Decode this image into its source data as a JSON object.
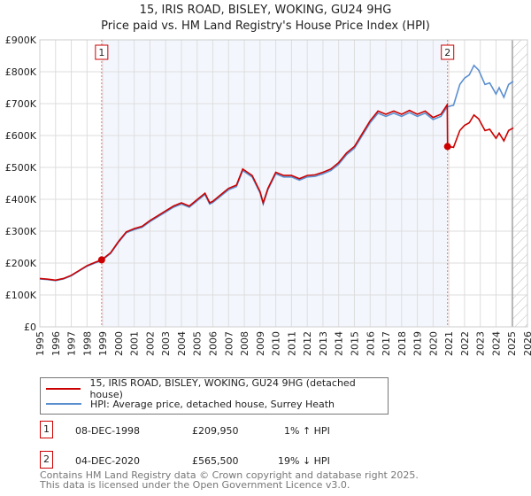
{
  "title": "15, IRIS ROAD, BISLEY, WOKING, GU24 9HG",
  "subtitle": "Price paid vs. HM Land Registry's House Price Index (HPI)",
  "legend": {
    "property": "15, IRIS ROAD, BISLEY, WOKING, GU24 9HG (detached house)",
    "hpi": "HPI: Average price, detached house, Surrey Heath"
  },
  "sales": [
    {
      "num": "1",
      "date": "08-DEC-1998",
      "price": "£209,950",
      "delta": "1% ↑ HPI"
    },
    {
      "num": "2",
      "date": "04-DEC-2020",
      "price": "£565,500",
      "delta": "19% ↓ HPI"
    }
  ],
  "footer": [
    "Contains HM Land Registry data © Crown copyright and database right 2025.",
    "This data is licensed under the Open Government Licence v3.0."
  ],
  "chart_data": {
    "type": "line",
    "xlim": [
      1995,
      2026
    ],
    "ylim": [
      0,
      900000
    ],
    "xticks": [
      "1995",
      "1996",
      "1997",
      "1998",
      "1999",
      "2000",
      "2001",
      "2002",
      "2003",
      "2004",
      "2005",
      "2006",
      "2007",
      "2008",
      "2009",
      "2010",
      "2011",
      "2012",
      "2013",
      "2014",
      "2015",
      "2016",
      "2017",
      "2018",
      "2019",
      "2020",
      "2021",
      "2022",
      "2023",
      "2024",
      "2025",
      "2026"
    ],
    "yticks": [
      {
        "v": 0,
        "l": "£0"
      },
      {
        "v": 100000,
        "l": "£100K"
      },
      {
        "v": 200000,
        "l": "£200K"
      },
      {
        "v": 300000,
        "l": "£300K"
      },
      {
        "v": 400000,
        "l": "£400K"
      },
      {
        "v": 500000,
        "l": "£500K"
      },
      {
        "v": 600000,
        "l": "£600K"
      },
      {
        "v": 700000,
        "l": "£700K"
      },
      {
        "v": 800000,
        "l": "£800K"
      },
      {
        "v": 900000,
        "l": "£900K"
      }
    ],
    "colors": {
      "property": "#cc0000",
      "hpi": "#5b8fd0"
    },
    "sale_points": [
      {
        "x": 1998.93,
        "y": 209950,
        "label": "1"
      },
      {
        "x": 2020.92,
        "y": 565500,
        "label": "2"
      }
    ],
    "hpi": [
      [
        1995,
        150
      ],
      [
        1995.5,
        148
      ],
      [
        1996,
        145
      ],
      [
        1996.5,
        150
      ],
      [
        1997,
        160
      ],
      [
        1997.5,
        175
      ],
      [
        1998,
        190
      ],
      [
        1998.5,
        200
      ],
      [
        1998.93,
        208
      ],
      [
        1999.5,
        230
      ],
      [
        2000,
        265
      ],
      [
        2000.5,
        295
      ],
      [
        2001,
        305
      ],
      [
        2001.5,
        312
      ],
      [
        2002,
        330
      ],
      [
        2002.5,
        345
      ],
      [
        2003,
        360
      ],
      [
        2003.5,
        375
      ],
      [
        2004,
        385
      ],
      [
        2004.5,
        375
      ],
      [
        2005,
        395
      ],
      [
        2005.5,
        415
      ],
      [
        2005.8,
        385
      ],
      [
        2006,
        390
      ],
      [
        2006.5,
        410
      ],
      [
        2007,
        430
      ],
      [
        2007.5,
        440
      ],
      [
        2007.9,
        490
      ],
      [
        2008.5,
        470
      ],
      [
        2009,
        420
      ],
      [
        2009.2,
        385
      ],
      [
        2009.5,
        430
      ],
      [
        2010,
        480
      ],
      [
        2010.5,
        470
      ],
      [
        2011,
        470
      ],
      [
        2011.5,
        460
      ],
      [
        2012,
        470
      ],
      [
        2012.5,
        472
      ],
      [
        2013,
        480
      ],
      [
        2013.5,
        490
      ],
      [
        2014,
        510
      ],
      [
        2014.5,
        540
      ],
      [
        2015,
        560
      ],
      [
        2015.5,
        600
      ],
      [
        2016,
        640
      ],
      [
        2016.5,
        670
      ],
      [
        2017,
        660
      ],
      [
        2017.5,
        670
      ],
      [
        2018,
        660
      ],
      [
        2018.5,
        672
      ],
      [
        2019,
        660
      ],
      [
        2019.5,
        670
      ],
      [
        2020,
        650
      ],
      [
        2020.5,
        660
      ],
      [
        2020.9,
        690
      ],
      [
        2021.3,
        695
      ],
      [
        2021.7,
        760
      ],
      [
        2022,
        780
      ],
      [
        2022.3,
        790
      ],
      [
        2022.6,
        820
      ],
      [
        2022.9,
        805
      ],
      [
        2023.3,
        760
      ],
      [
        2023.6,
        765
      ],
      [
        2024,
        730
      ],
      [
        2024.2,
        750
      ],
      [
        2024.5,
        720
      ],
      [
        2024.8,
        760
      ],
      [
        2025.1,
        770
      ]
    ],
    "property_scale_before_2": 1.01,
    "property_scale_after_2": 0.81,
    "forecast_from": 2025.05
  }
}
